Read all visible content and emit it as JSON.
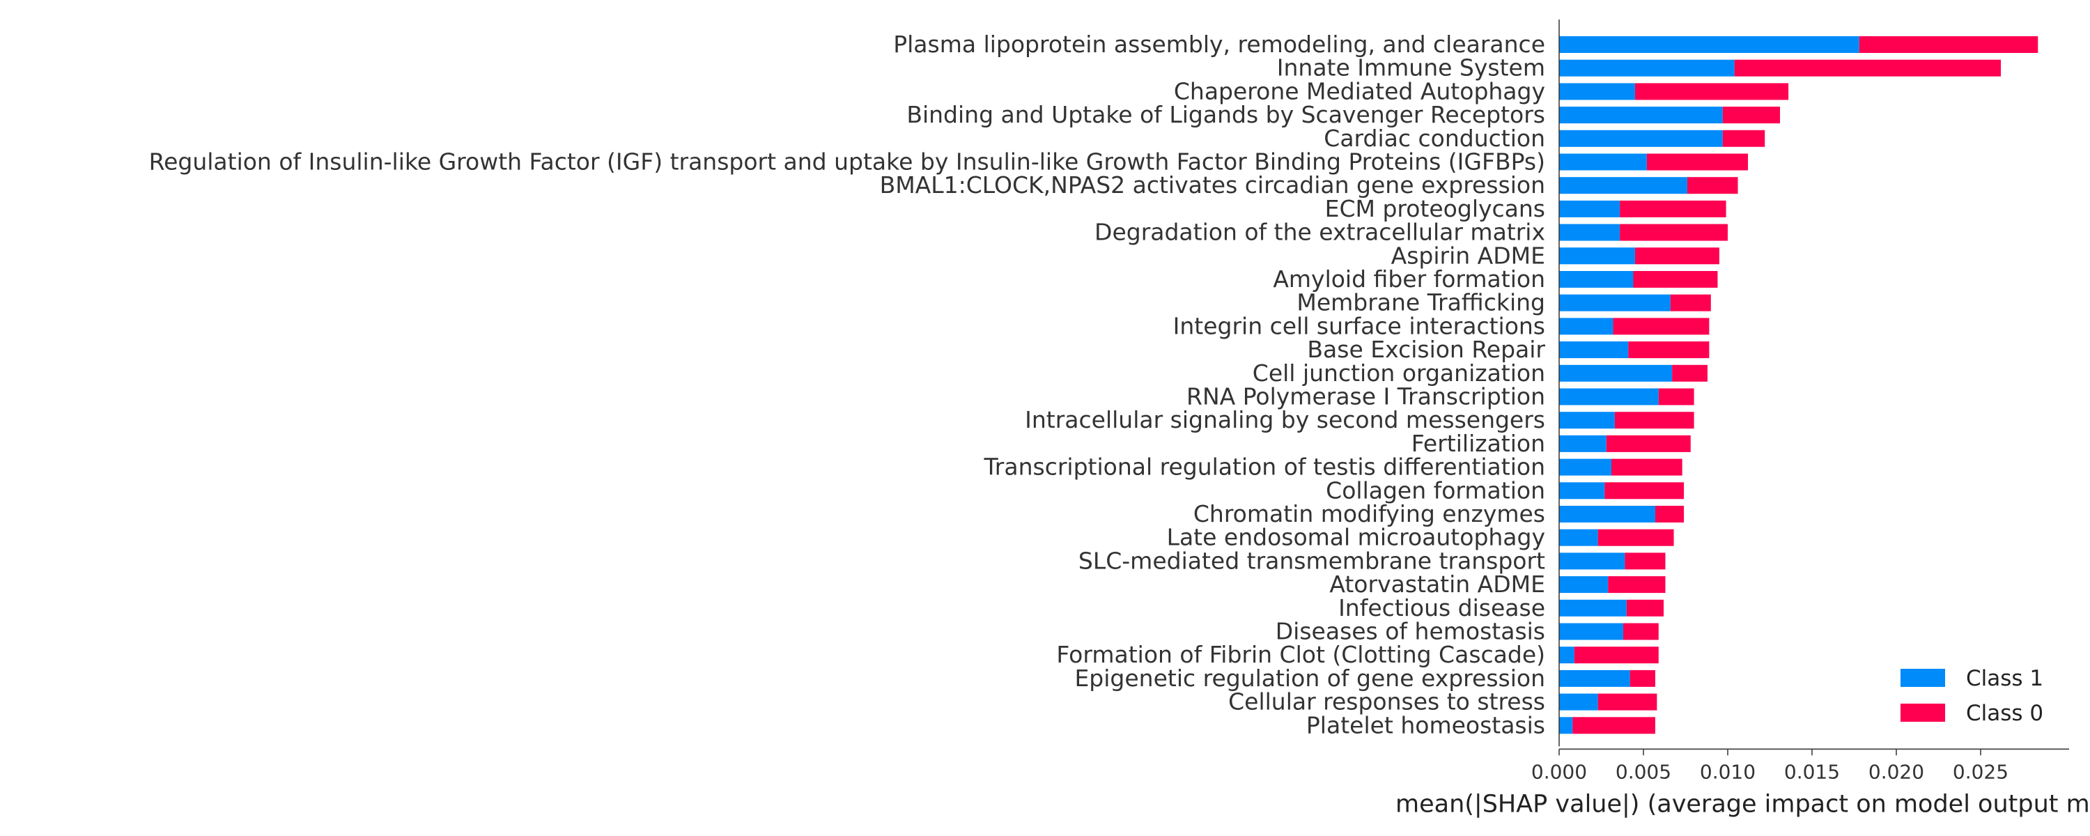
{
  "chart_data": {
    "type": "bar",
    "stacked": true,
    "orientation": "horizontal",
    "title": "",
    "xlabel": "mean(|SHAP value|) (average impact on model output m",
    "ylabel": "",
    "xlim": [
      0,
      0.0305
    ],
    "xticks": [
      "0.000",
      "0.005",
      "0.010",
      "0.015",
      "0.020",
      "0.025"
    ],
    "legend_position": "bottom-right",
    "categories": [
      "Plasma lipoprotein assembly, remodeling, and clearance",
      "Innate Immune System",
      "Chaperone Mediated Autophagy",
      "Binding and Uptake of Ligands by Scavenger Receptors",
      "Cardiac conduction",
      "Regulation of Insulin-like Growth Factor (IGF) transport and uptake by Insulin-like Growth Factor Binding Proteins (IGFBPs)",
      "BMAL1:CLOCK,NPAS2 activates circadian gene expression",
      "ECM proteoglycans",
      "Degradation of the extracellular matrix",
      "Aspirin ADME",
      "Amyloid fiber formation",
      "Membrane Trafficking",
      "Integrin cell surface interactions",
      "Base Excision Repair",
      "Cell junction organization",
      "RNA Polymerase I Transcription",
      "Intracellular signaling by second messengers",
      "Fertilization",
      "Transcriptional regulation of testis differentiation",
      "Collagen formation",
      "Chromatin modifying enzymes",
      "Late endosomal microautophagy",
      "SLC-mediated transmembrane transport",
      "Atorvastatin ADME",
      "Infectious disease",
      "Diseases of hemostasis",
      "Formation of Fibrin Clot (Clotting Cascade)",
      "Epigenetic regulation of gene expression",
      "Cellular responses to stress",
      "Platelet homeostasis"
    ],
    "series": [
      {
        "name": "Class 1",
        "color": "#008bfb",
        "values": [
          0.0178,
          0.0104,
          0.0045,
          0.0097,
          0.0097,
          0.0052,
          0.0076,
          0.0036,
          0.0036,
          0.0045,
          0.0044,
          0.0066,
          0.0032,
          0.0041,
          0.0067,
          0.0059,
          0.0033,
          0.0028,
          0.0031,
          0.0027,
          0.0057,
          0.0023,
          0.0039,
          0.0029,
          0.004,
          0.0038,
          0.0009,
          0.0042,
          0.0023,
          0.0008
        ]
      },
      {
        "name": "Class 0",
        "color": "#ff0051",
        "values": [
          0.0106,
          0.0158,
          0.0091,
          0.0034,
          0.0025,
          0.006,
          0.003,
          0.0063,
          0.0064,
          0.005,
          0.005,
          0.0024,
          0.0057,
          0.0048,
          0.0021,
          0.0021,
          0.0047,
          0.005,
          0.0042,
          0.0047,
          0.0017,
          0.0045,
          0.0024,
          0.0034,
          0.0022,
          0.0021,
          0.005,
          0.0015,
          0.0035,
          0.0049
        ]
      }
    ]
  }
}
